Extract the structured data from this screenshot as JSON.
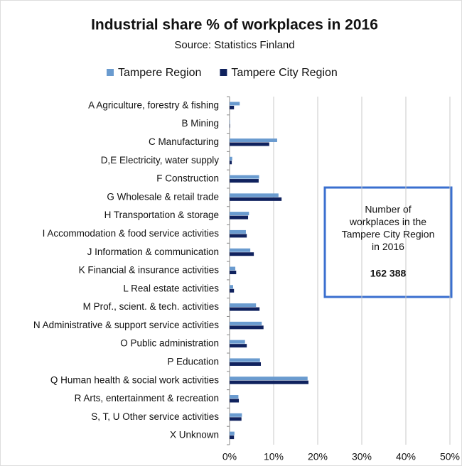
{
  "chart_data": {
    "type": "hbar",
    "title": "Industrial share % of workplaces in 2016",
    "subtitle": "Source: Statistics Finland",
    "categories": [
      "A Agriculture, forestry & fishing",
      "B Mining",
      "C Manufacturing",
      "D,E Electricity, water supply",
      "F Construction",
      "G  Wholesale & retail trade",
      "H Transportation & storage",
      "I Accommodation & food service activities",
      "J Information & communication",
      "K Financial & insurance activities",
      "L Real estate activities",
      "M Prof., scient. & tech. activities",
      "N Administrative & support service activities",
      "O Public administration",
      "P Education",
      "Q Human health & social work activities",
      "R Arts, entertainment & recreation",
      "S, T, U Other service activities",
      "X Unknown"
    ],
    "series": [
      {
        "name": "Tampere Region",
        "color": "#6a9bcf",
        "values": [
          2.3,
          0.1,
          10.8,
          0.6,
          6.7,
          11.1,
          4.4,
          3.7,
          4.7,
          1.3,
          0.8,
          6.0,
          7.3,
          3.5,
          6.9,
          17.7,
          2.0,
          2.8,
          1.1
        ]
      },
      {
        "name": "Tampere City Region",
        "color": "#10225e",
        "values": [
          1.0,
          0.1,
          9.0,
          0.5,
          6.6,
          11.8,
          4.2,
          3.9,
          5.5,
          1.5,
          1.0,
          6.8,
          7.7,
          3.9,
          7.1,
          17.9,
          2.1,
          2.7,
          1.0
        ]
      }
    ],
    "xlim": [
      0,
      50
    ],
    "xticks": [
      {
        "value": 0,
        "label": "0%"
      },
      {
        "value": 10,
        "label": "10%"
      },
      {
        "value": 20,
        "label": "20%"
      },
      {
        "value": 30,
        "label": "30%"
      },
      {
        "value": 40,
        "label": "40%"
      },
      {
        "value": 50,
        "label": "50%"
      }
    ],
    "grid": true,
    "legend": "top",
    "annotation": {
      "lines": [
        "Number of",
        "workplaces in the",
        "Tampere City Region",
        "in 2016"
      ],
      "value": "162 388"
    }
  }
}
